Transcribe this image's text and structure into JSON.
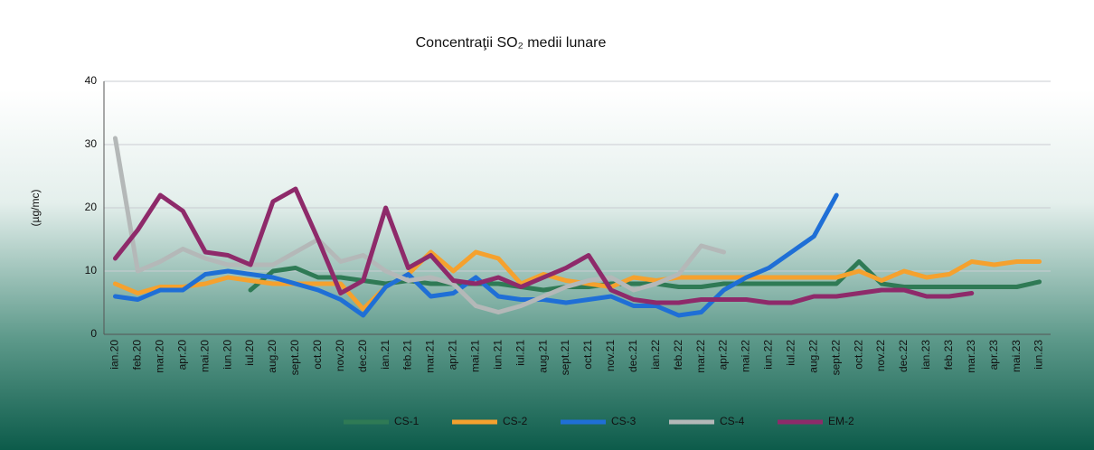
{
  "chart_data": {
    "type": "line",
    "title": "Concentraţii SO₂ medii lunare",
    "y_label": "(µg/mc)",
    "categories": [
      "ian.20",
      "feb.20",
      "mar.20",
      "apr.20",
      "mai.20",
      "iun.20",
      "iul.20",
      "aug.20",
      "sept.20",
      "oct.20",
      "nov.20",
      "dec.20",
      "ian.21",
      "feb.21",
      "mar.21",
      "apr.21",
      "mai.21",
      "iun.21",
      "iul.21",
      "aug.21",
      "sept.21",
      "oct.21",
      "nov.21",
      "dec.21",
      "ian.22",
      "feb.22",
      "mar.22",
      "apr.22",
      "mai.22",
      "iun.22",
      "iul.22",
      "aug.22",
      "sept.22",
      "oct.22",
      "nov.22",
      "dec.22",
      "ian.23",
      "feb.23",
      "mar.23",
      "apr.23",
      "mai.23",
      "iun.23"
    ],
    "series": [
      {
        "name": "CS-1",
        "color": "#2f7a55",
        "values": [
          null,
          null,
          null,
          null,
          null,
          null,
          7,
          10,
          10.5,
          9,
          9,
          8.5,
          8,
          8.5,
          8,
          8,
          8,
          8,
          7.5,
          7,
          7.5,
          7.5,
          8,
          8,
          8,
          7.5,
          7.5,
          8,
          8,
          8,
          8,
          8,
          8,
          11.5,
          8,
          7.5,
          7.5,
          7.5,
          7.5,
          7.5,
          7.5,
          8.3
        ]
      },
      {
        "name": "CS-2",
        "color": "#f5a12e",
        "values": [
          8,
          6.5,
          7.5,
          7.5,
          8,
          9,
          8.5,
          8,
          8,
          8,
          8,
          4,
          7.5,
          9.5,
          13,
          10,
          13,
          12,
          8,
          9.5,
          8.5,
          8,
          7.5,
          9,
          8.5,
          9,
          9,
          9,
          9,
          9,
          9,
          9,
          9,
          10,
          8.5,
          10,
          9,
          9.5,
          11.5,
          11,
          11.5,
          11.5
        ]
      },
      {
        "name": "CS-3",
        "color": "#1f6fd6",
        "values": [
          6,
          5.5,
          7,
          7,
          9.5,
          10,
          9.5,
          9,
          8,
          7,
          5.5,
          3,
          7.5,
          9.5,
          6,
          6.5,
          9,
          6,
          5.5,
          5.5,
          5,
          5.5,
          6,
          4.5,
          4.5,
          3,
          3.5,
          7,
          9,
          10.5,
          13,
          15.5,
          22,
          null,
          null,
          null,
          null,
          null,
          null,
          null,
          null,
          null
        ]
      },
      {
        "name": "CS-4",
        "color": "#b4b8b8",
        "values": [
          31,
          10,
          11.5,
          13.5,
          12,
          11,
          11,
          11,
          13,
          15,
          11.5,
          12.5,
          10,
          8.5,
          9,
          8,
          4.5,
          3.5,
          4.5,
          6,
          7.5,
          8.5,
          9,
          7,
          8,
          9.5,
          14,
          13,
          null,
          null,
          null,
          null,
          null,
          null,
          null,
          null,
          null,
          null,
          null,
          null,
          null,
          null
        ]
      },
      {
        "name": "EM-2",
        "color": "#8e2a6a",
        "values": [
          12,
          16.5,
          22,
          19.5,
          13,
          12.5,
          11,
          21,
          23,
          15,
          6.5,
          8.5,
          20,
          10.5,
          12.5,
          8.5,
          8,
          9,
          7.5,
          9,
          10.5,
          12.5,
          7,
          5.5,
          5,
          5,
          5.5,
          5.5,
          5.5,
          5,
          5,
          6,
          6,
          6.5,
          7,
          7,
          6,
          6,
          6.5,
          null,
          null,
          null
        ]
      }
    ],
    "ylim": [
      0,
      40
    ],
    "yticks": [
      0,
      10,
      20,
      30,
      40
    ],
    "grid": true,
    "legend": "bottom"
  }
}
